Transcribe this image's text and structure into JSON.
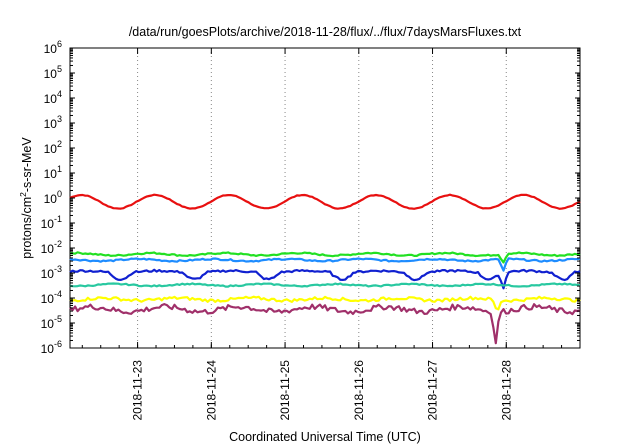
{
  "chart_data": {
    "type": "line",
    "title": "/data/run/goesPlots/archive/2018-11-28/flux/../flux/7daysMarsFluxes.txt",
    "xlabel": "Coordinated Universal Time (UTC)",
    "ylabel": {
      "base": "protons/cm",
      "sup": "2",
      "rest": "-s-sr-MeV"
    },
    "y_scale": "log",
    "ylim": [
      1e-06,
      1000000.0
    ],
    "y_ticks": [
      {
        "value": 1000000.0,
        "base": "10",
        "exp": "6"
      },
      {
        "value": 100000.0,
        "base": "10",
        "exp": "5"
      },
      {
        "value": 10000.0,
        "base": "10",
        "exp": "4"
      },
      {
        "value": 1000.0,
        "base": "10",
        "exp": "3"
      },
      {
        "value": 100.0,
        "base": "10",
        "exp": "2"
      },
      {
        "value": 10.0,
        "base": "10",
        "exp": "1"
      },
      {
        "value": 1.0,
        "base": "10",
        "exp": "0"
      },
      {
        "value": 0.1,
        "base": "10",
        "exp": "-1"
      },
      {
        "value": 0.01,
        "base": "10",
        "exp": "-2"
      },
      {
        "value": 0.001,
        "base": "10",
        "exp": "-3"
      },
      {
        "value": 0.0001,
        "base": "10",
        "exp": "-4"
      },
      {
        "value": 1e-05,
        "base": "10",
        "exp": "-5"
      },
      {
        "value": 1e-06,
        "base": "10",
        "exp": "-6"
      }
    ],
    "xlim_days": [
      "2018-11-22T02:00",
      "2018-11-29T00:00"
    ],
    "x_ticks": [
      "2018-11-23",
      "2018-11-24",
      "2018-11-25",
      "2018-11-26",
      "2018-11-27",
      "2018-11-28"
    ],
    "grid": "vertical dotted at day ticks",
    "series": [
      {
        "color": "#e81010",
        "kind": "sine",
        "mean_log": -0.15,
        "amp_log": 0.27,
        "noise_log": 0.03,
        "dips": []
      },
      {
        "color": "#22e022",
        "kind": "flat",
        "mean_log": -2.25,
        "amp_log": 0.05,
        "noise_log": 0.06,
        "dips": [
          {
            "day": "2018-11-27T23:00",
            "depth_log": 0.35
          }
        ]
      },
      {
        "color": "#1e8cff",
        "kind": "flat",
        "mean_log": -2.48,
        "amp_log": 0.04,
        "noise_log": 0.06,
        "dips": [
          {
            "day": "2018-11-27T23:00",
            "depth_log": 0.5
          }
        ]
      },
      {
        "color": "#1020d0",
        "kind": "dips",
        "mean_log": -2.95,
        "amp_log": 0.3,
        "noise_log": 0.08,
        "dips": [
          {
            "day": "2018-11-27T23:00",
            "depth_log": 0.7
          }
        ]
      },
      {
        "color": "#28c8a0",
        "kind": "flat",
        "mean_log": -3.48,
        "amp_log": 0.04,
        "noise_log": 0.05,
        "dips": []
      },
      {
        "color": "#ffff00",
        "kind": "noisy",
        "mean_log": -4.05,
        "amp_log": 0.05,
        "noise_log": 0.12,
        "dips": [
          {
            "day": "2018-11-27T21:00",
            "depth_log": 0.5
          }
        ]
      },
      {
        "color": "#a0306a",
        "kind": "noisy",
        "mean_log": -4.45,
        "amp_log": 0.1,
        "noise_log": 0.22,
        "dips": [
          {
            "day": "2018-11-27T20:30",
            "depth_log": 1.3
          }
        ]
      }
    ]
  }
}
